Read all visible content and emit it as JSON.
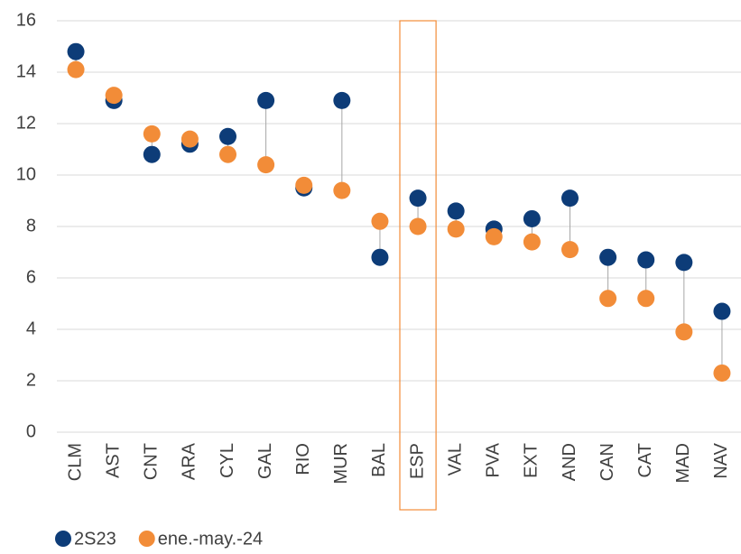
{
  "chart_data": {
    "type": "dot",
    "categories": [
      "CLM",
      "AST",
      "CNT",
      "ARA",
      "CYL",
      "GAL",
      "RIO",
      "MUR",
      "BAL",
      "ESP",
      "VAL",
      "PVA",
      "EXT",
      "AND",
      "CAN",
      "CAT",
      "MAD",
      "NAV"
    ],
    "series": [
      {
        "name": "2S23",
        "color": "#0d3c78",
        "values": [
          14.8,
          12.9,
          10.8,
          11.2,
          11.5,
          12.9,
          9.5,
          12.9,
          6.8,
          9.1,
          8.6,
          7.9,
          8.3,
          9.1,
          6.8,
          6.7,
          6.6,
          4.7
        ]
      },
      {
        "name": "ene.-may.-24",
        "color": "#f28c38",
        "values": [
          14.1,
          13.1,
          11.6,
          11.4,
          10.8,
          10.4,
          9.6,
          9.4,
          8.2,
          8.0,
          7.9,
          7.6,
          7.4,
          7.1,
          5.2,
          5.2,
          3.9,
          2.3
        ]
      }
    ],
    "ylim": [
      0,
      16
    ],
    "yticks": [
      0,
      2,
      4,
      6,
      8,
      10,
      12,
      14,
      16
    ],
    "grid": true,
    "highlight": "ESP",
    "legend": "bottom-left"
  }
}
